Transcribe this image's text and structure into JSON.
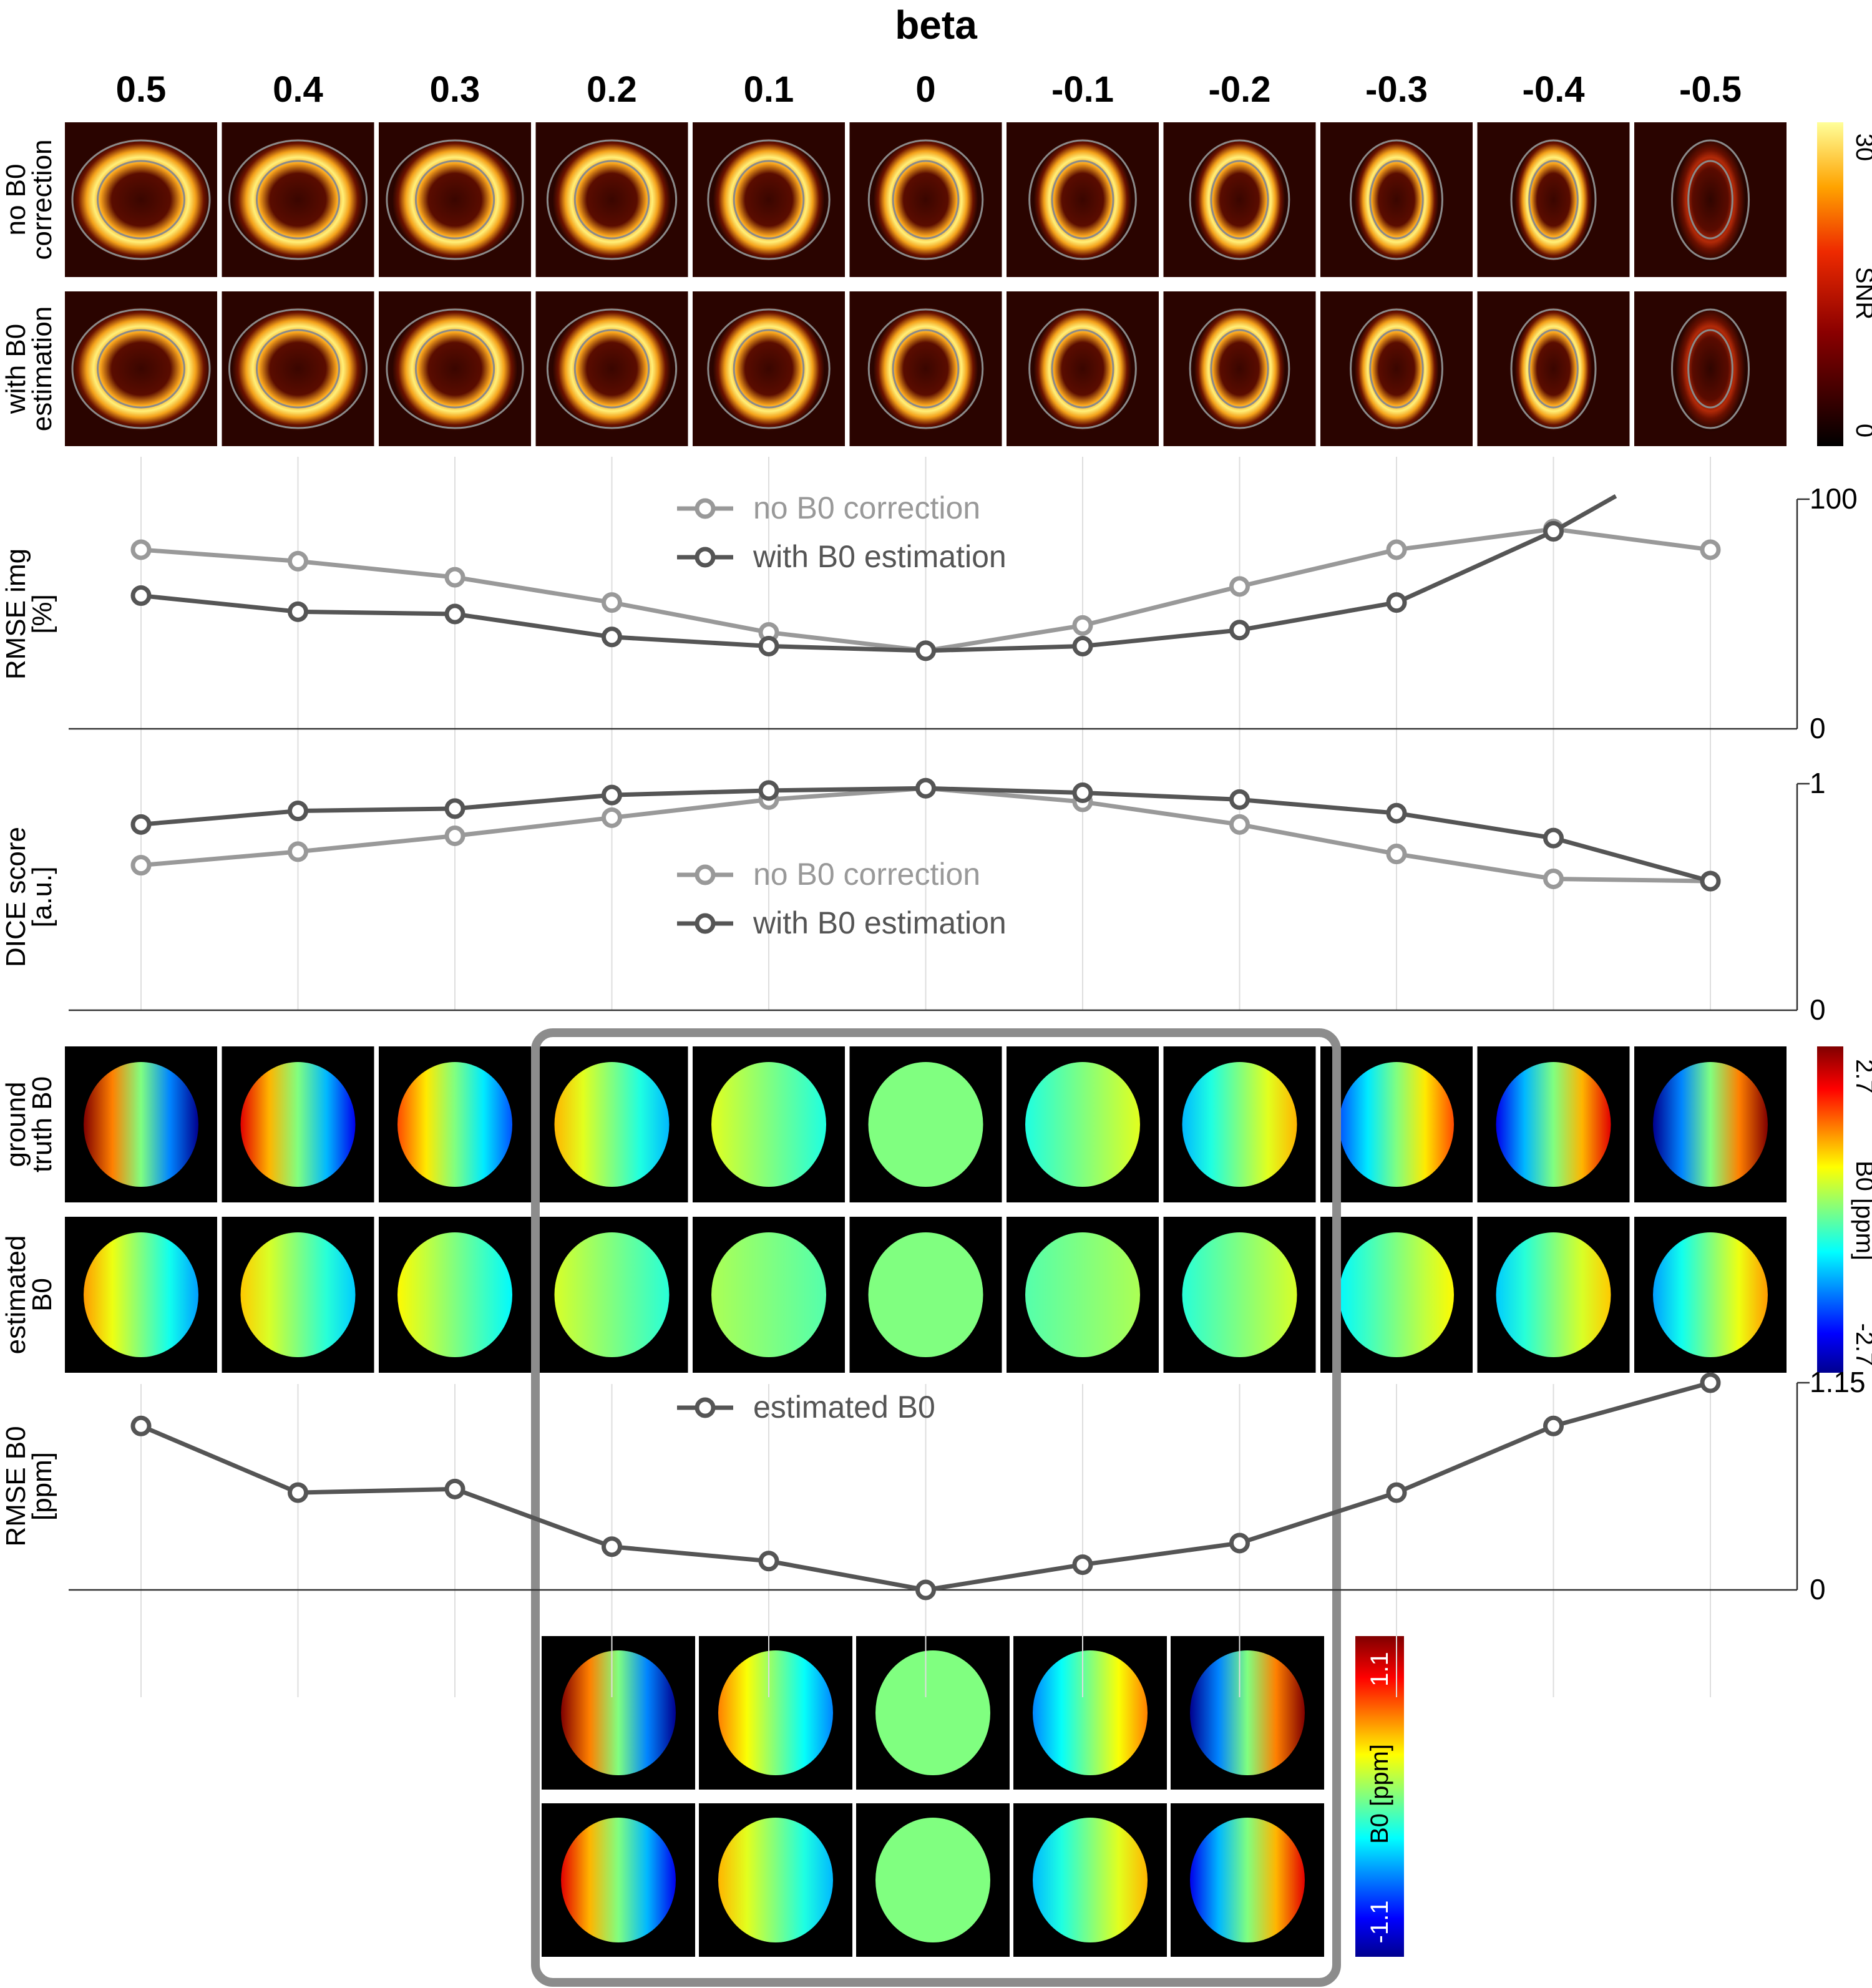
{
  "header": {
    "title": "beta",
    "beta_values": [
      "0.5",
      "0.4",
      "0.3",
      "0.2",
      "0.1",
      "0",
      "-0.1",
      "-0.2",
      "-0.3",
      "-0.4",
      "-0.5"
    ]
  },
  "snr_images": {
    "row_labels": [
      [
        "no B0",
        "correction"
      ],
      [
        "with B0",
        "estimation"
      ]
    ],
    "colorbar": {
      "label": "SNR",
      "max": "30",
      "min": "0"
    }
  },
  "b0_images": {
    "row_labels": [
      [
        "ground",
        "truth B0"
      ],
      [
        "estimated",
        "B0"
      ]
    ],
    "colorbar": {
      "label": "B0 [ppm]",
      "max": "2.7",
      "min": "-2.7"
    }
  },
  "zoom_inset": {
    "colorbar": {
      "label": "B0 [ppm]",
      "max": "1.1",
      "min": "-1.1"
    }
  },
  "chart_data": [
    {
      "type": "line",
      "ylabel": [
        "RMSE img",
        "[%]"
      ],
      "ylim": [
        0,
        100
      ],
      "yticks": [
        "0",
        "100"
      ],
      "categories": [
        "0.5",
        "0.4",
        "0.3",
        "0.2",
        "0.1",
        "0",
        "-0.1",
        "-0.2",
        "-0.3",
        "-0.4",
        "-0.5"
      ],
      "series": [
        {
          "name": "no B0 correction",
          "color": "#999999",
          "values": [
            78,
            73,
            66,
            55,
            42,
            34,
            45,
            62,
            78,
            87,
            78
          ]
        },
        {
          "name": "with B0 estimation",
          "color": "#555555",
          "values": [
            58,
            51,
            50,
            40,
            36,
            34,
            36,
            43,
            55,
            86,
            null
          ],
          "extends_beyond_top": true
        }
      ],
      "legend": "top-center"
    },
    {
      "type": "line",
      "ylabel": [
        "DICE score",
        "[a.u.]"
      ],
      "ylim": [
        0,
        1
      ],
      "yticks": [
        "0",
        "1"
      ],
      "categories": [
        "0.5",
        "0.4",
        "0.3",
        "0.2",
        "0.1",
        "0",
        "-0.1",
        "-0.2",
        "-0.3",
        "-0.4",
        "-0.5"
      ],
      "series": [
        {
          "name": "no B0 correction",
          "color": "#999999",
          "values": [
            0.64,
            0.7,
            0.77,
            0.85,
            0.93,
            0.98,
            0.92,
            0.82,
            0.69,
            0.58,
            0.57
          ]
        },
        {
          "name": "with B0 estimation",
          "color": "#555555",
          "values": [
            0.82,
            0.88,
            0.89,
            0.95,
            0.97,
            0.98,
            0.96,
            0.93,
            0.87,
            0.76,
            0.57
          ]
        }
      ],
      "legend": "center"
    },
    {
      "type": "line",
      "ylabel": [
        "RMSE B0",
        "[ppm]"
      ],
      "ylim": [
        0,
        1.15
      ],
      "yticks": [
        "0",
        "1.15"
      ],
      "categories": [
        "0.5",
        "0.4",
        "0.3",
        "0.2",
        "0.1",
        "0",
        "-0.1",
        "-0.2",
        "-0.3",
        "-0.4",
        "-0.5"
      ],
      "series": [
        {
          "name": "estimated B0",
          "color": "#555555",
          "values": [
            0.91,
            0.54,
            0.56,
            0.24,
            0.16,
            0.0,
            0.14,
            0.26,
            0.54,
            0.91,
            1.15
          ]
        }
      ],
      "legend": "top-center"
    }
  ]
}
